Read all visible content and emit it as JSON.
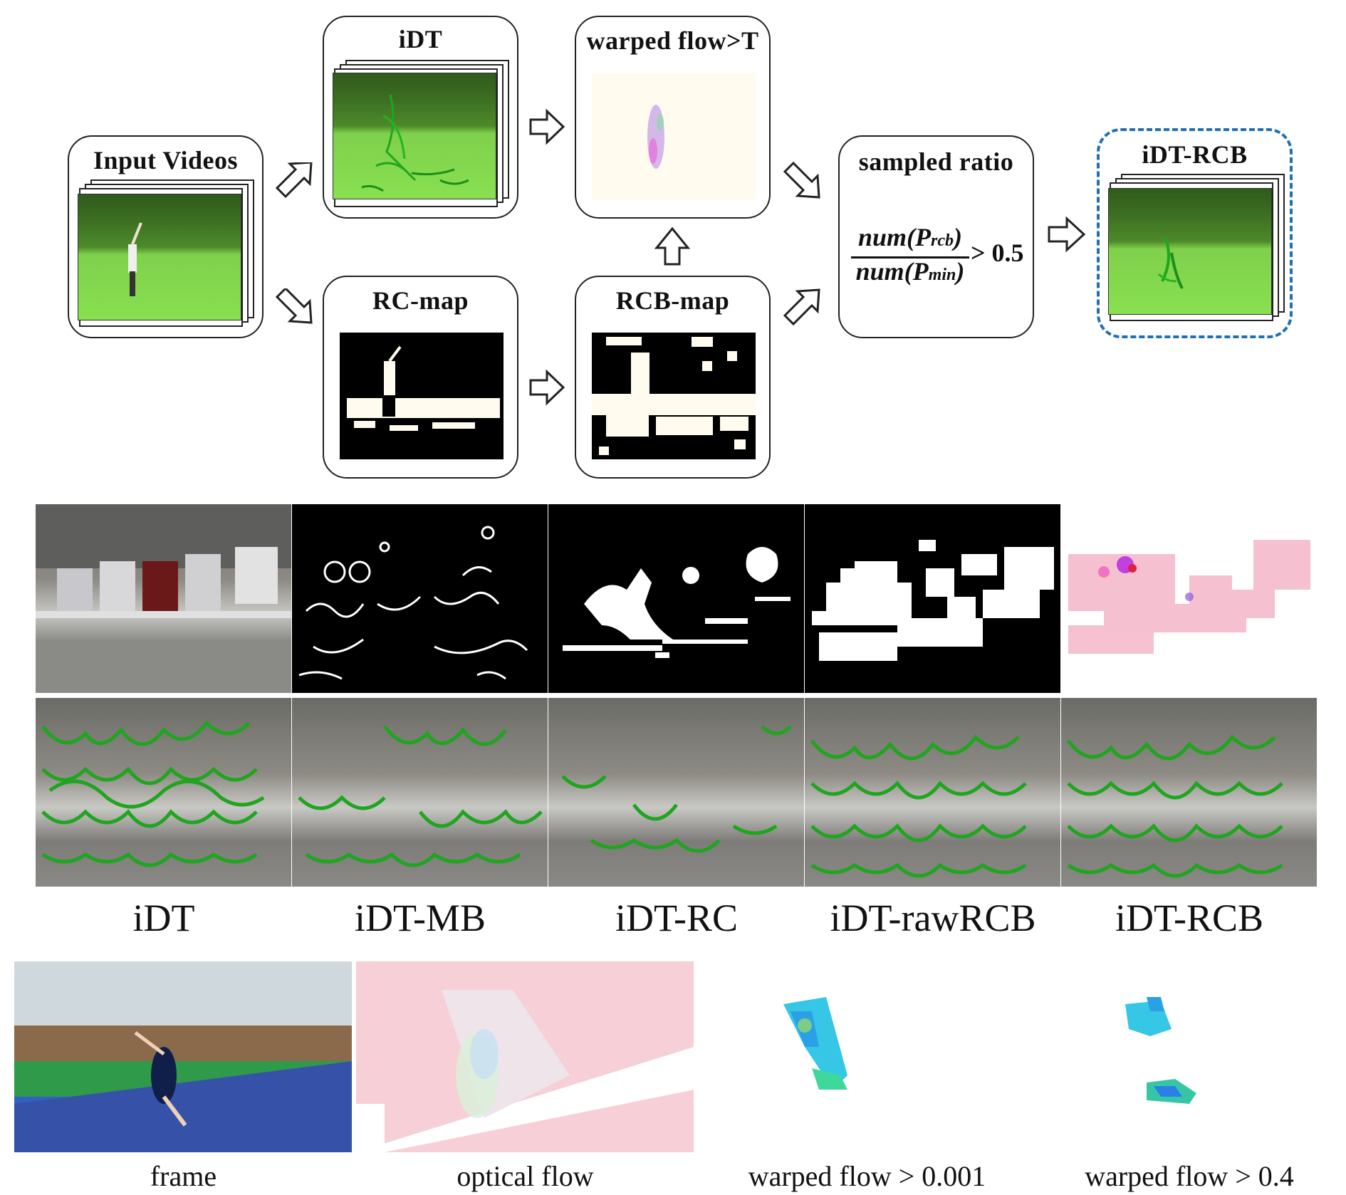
{
  "pipeline": {
    "input": {
      "title": "Input Videos"
    },
    "idt": {
      "title": "iDT"
    },
    "warped": {
      "title": "warped flow>T"
    },
    "rcmap": {
      "title": "RC-map"
    },
    "rcbmap": {
      "title": "RCB-map"
    },
    "ratio": {
      "title": "sampled ratio",
      "numerator": "num(P",
      "numerator_sub": "rcb",
      "denominator": "num(P",
      "denominator_sub": "min",
      "close": ")",
      "comparison": "> 0.5"
    },
    "output": {
      "title": "iDT-RCB"
    }
  },
  "comparison_labels": [
    "iDT",
    "iDT-MB",
    "iDT-RC",
    "iDT-rawRCB",
    "iDT-RCB"
  ],
  "bottom_labels": [
    "frame",
    "optical flow",
    "warped flow > 0.001",
    "warped flow > 0.4"
  ],
  "colors": {
    "trajectory": "#1fa51f",
    "dashed_border": "#1f6fb4",
    "flow_pink": "#f4b6c8",
    "flow_cyan": "#36c6e6"
  }
}
